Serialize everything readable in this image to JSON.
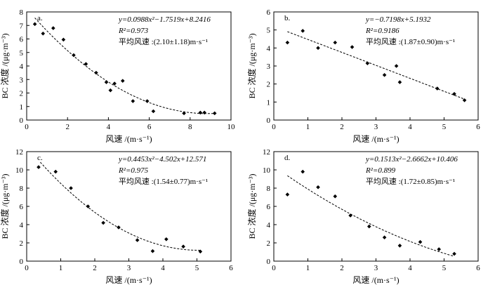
{
  "chart_data": [
    {
      "panel": "a.",
      "type": "scatter",
      "xlabel": "风速 /(m·s⁻¹)",
      "ylabel": "BC 浓度 /(μg·m⁻³)",
      "xlim": [
        0,
        10
      ],
      "ylim": [
        0,
        8
      ],
      "xticks": [
        "0",
        "2",
        "4",
        "6",
        "8",
        "10"
      ],
      "yticks": [
        "0",
        "1",
        "2",
        "3",
        "4",
        "5",
        "6",
        "7",
        "8"
      ],
      "equation": "y=0.0988x²−1.7519x+8.2416",
      "r2": "R²=0.973",
      "mean_wind": "平均风速 :(2.10±1.18)m·s⁻¹",
      "fit": {
        "kind": "quadratic",
        "coef": [
          0.0988,
          -1.7519,
          8.2416
        ],
        "range": [
          0.4,
          9.2
        ]
      },
      "points": [
        {
          "x": 0.4,
          "y": 7.1
        },
        {
          "x": 0.8,
          "y": 6.4
        },
        {
          "x": 1.3,
          "y": 6.8
        },
        {
          "x": 1.8,
          "y": 5.95
        },
        {
          "x": 2.3,
          "y": 4.8
        },
        {
          "x": 2.9,
          "y": 4.15
        },
        {
          "x": 3.4,
          "y": 3.5
        },
        {
          "x": 3.9,
          "y": 2.8
        },
        {
          "x": 4.1,
          "y": 2.2
        },
        {
          "x": 4.3,
          "y": 2.7
        },
        {
          "x": 4.7,
          "y": 2.9
        },
        {
          "x": 5.2,
          "y": 1.4
        },
        {
          "x": 5.9,
          "y": 1.4
        },
        {
          "x": 6.2,
          "y": 0.65
        },
        {
          "x": 7.7,
          "y": 0.5
        },
        {
          "x": 8.5,
          "y": 0.55
        },
        {
          "x": 8.7,
          "y": 0.55
        },
        {
          "x": 9.2,
          "y": 0.5
        }
      ]
    },
    {
      "panel": "b.",
      "type": "scatter",
      "xlabel": "风速 /(m·s⁻¹)",
      "ylabel": "BC 浓度 /(μg·m⁻³)",
      "xlim": [
        0,
        6
      ],
      "ylim": [
        0,
        6
      ],
      "xticks": [
        "0",
        "1",
        "2",
        "3",
        "4",
        "5",
        "6"
      ],
      "yticks": [
        "0",
        "1",
        "2",
        "3",
        "4",
        "5",
        "6"
      ],
      "equation": "y=−0.7198x+5.1932",
      "r2": "R²=0.9186",
      "mean_wind": "平均风速 :(1.87±0.90)m·s⁻¹",
      "fit": {
        "kind": "linear",
        "coef": [
          0,
          -0.7198,
          5.1932
        ],
        "range": [
          0.4,
          5.6
        ]
      },
      "points": [
        {
          "x": 0.4,
          "y": 4.3
        },
        {
          "x": 0.85,
          "y": 4.95
        },
        {
          "x": 1.3,
          "y": 4.0
        },
        {
          "x": 1.8,
          "y": 4.3
        },
        {
          "x": 2.3,
          "y": 4.05
        },
        {
          "x": 2.75,
          "y": 3.15
        },
        {
          "x": 3.25,
          "y": 2.5
        },
        {
          "x": 3.6,
          "y": 3.0
        },
        {
          "x": 3.7,
          "y": 2.1
        },
        {
          "x": 4.8,
          "y": 1.75
        },
        {
          "x": 5.3,
          "y": 1.45
        },
        {
          "x": 5.6,
          "y": 1.1
        }
      ]
    },
    {
      "panel": "c.",
      "type": "scatter",
      "xlabel": "风速 /(m·s⁻¹)",
      "ylabel": "BC 浓度 /(μg·m⁻³)",
      "xlim": [
        0,
        6
      ],
      "ylim": [
        0,
        12
      ],
      "xticks": [
        "0",
        "1",
        "2",
        "3",
        "4",
        "5",
        "6"
      ],
      "yticks": [
        "0",
        "2",
        "4",
        "6",
        "8",
        "10",
        "12"
      ],
      "equation": "y=0.4453x²−4.502x+12.571",
      "r2": "R²=0.975",
      "mean_wind": "平均风速 :(1.54±0.77)m·s⁻¹",
      "fit": {
        "kind": "quadratic",
        "coef": [
          0.4453,
          -4.502,
          12.571
        ],
        "range": [
          0.4,
          5.1
        ]
      },
      "points": [
        {
          "x": 0.35,
          "y": 10.3
        },
        {
          "x": 0.85,
          "y": 9.8
        },
        {
          "x": 1.3,
          "y": 8.0
        },
        {
          "x": 1.8,
          "y": 6.0
        },
        {
          "x": 2.25,
          "y": 4.2
        },
        {
          "x": 2.7,
          "y": 3.7
        },
        {
          "x": 3.25,
          "y": 2.3
        },
        {
          "x": 3.7,
          "y": 1.1
        },
        {
          "x": 4.1,
          "y": 2.4
        },
        {
          "x": 4.6,
          "y": 1.6
        },
        {
          "x": 5.1,
          "y": 1.05
        }
      ]
    },
    {
      "panel": "d.",
      "type": "scatter",
      "xlabel": "风速 /(m·s⁻¹)",
      "ylabel": "BC 浓度 /(μg·m⁻³)",
      "xlim": [
        0,
        6
      ],
      "ylim": [
        0,
        12
      ],
      "xticks": [
        "0",
        "1",
        "2",
        "3",
        "4",
        "5",
        "6"
      ],
      "yticks": [
        "0",
        "2",
        "4",
        "6",
        "8",
        "10",
        "12"
      ],
      "equation": "y=0.1513x²−2.6662x+10.406",
      "r2": "R²=0.899",
      "mean_wind": "平均风速 :(1.72±0.85)m·s⁻¹",
      "fit": {
        "kind": "quadratic",
        "coef": [
          0.1513,
          -2.6662,
          10.406
        ],
        "range": [
          0.4,
          5.3
        ]
      },
      "points": [
        {
          "x": 0.4,
          "y": 7.3
        },
        {
          "x": 0.85,
          "y": 9.8
        },
        {
          "x": 1.3,
          "y": 8.1
        },
        {
          "x": 1.8,
          "y": 7.1
        },
        {
          "x": 2.25,
          "y": 5.0
        },
        {
          "x": 2.8,
          "y": 3.8
        },
        {
          "x": 3.25,
          "y": 2.6
        },
        {
          "x": 3.7,
          "y": 1.7
        },
        {
          "x": 4.3,
          "y": 2.1
        },
        {
          "x": 4.85,
          "y": 1.3
        },
        {
          "x": 5.3,
          "y": 0.8
        }
      ]
    }
  ]
}
